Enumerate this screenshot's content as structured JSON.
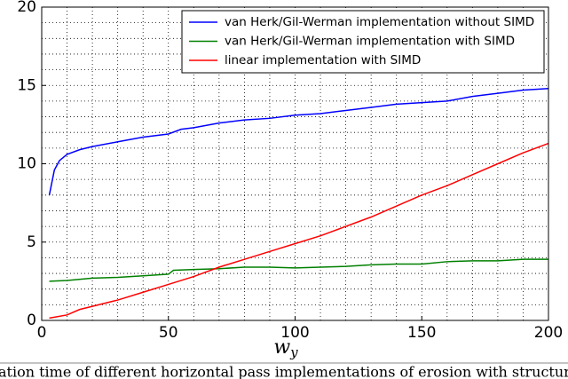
{
  "chart_data": {
    "type": "line",
    "xlabel": "w",
    "xlabel_subscript": "y",
    "caption": "ation time of different horizontal pass implementations of erosion with structuring eleme",
    "xlim": [
      0,
      200
    ],
    "ylim": [
      0,
      20
    ],
    "xticks": [
      0,
      50,
      100,
      150,
      200
    ],
    "yticks": [
      0,
      5,
      10,
      15,
      20
    ],
    "x_minor_ticks": [
      10,
      20,
      30,
      40,
      60,
      70,
      80,
      90,
      110,
      120,
      130,
      140,
      160,
      170,
      180,
      190
    ],
    "y_minor_ticks": [
      1,
      2,
      3,
      4,
      6,
      7,
      8,
      9,
      11,
      12,
      13,
      14,
      16,
      17,
      18,
      19
    ],
    "grid": true,
    "legend": "upper right",
    "series": [
      {
        "name": "van Herk/Gil-Werman implementation without SIMD",
        "color": "#0000ff",
        "x": [
          3,
          5,
          7,
          10,
          15,
          20,
          30,
          40,
          50,
          55,
          60,
          70,
          80,
          90,
          100,
          110,
          120,
          130,
          140,
          150,
          160,
          170,
          180,
          190,
          200
        ],
        "values": [
          8,
          9.6,
          10.2,
          10.6,
          10.9,
          11.1,
          11.4,
          11.7,
          11.9,
          12.2,
          12.3,
          12.6,
          12.8,
          12.9,
          13.1,
          13.2,
          13.4,
          13.6,
          13.8,
          13.9,
          14.0,
          14.3,
          14.5,
          14.7,
          14.8
        ]
      },
      {
        "name": "van Herk/Gil-Werman implementation with SIMD",
        "color": "#008000",
        "x": [
          3,
          10,
          20,
          30,
          40,
          50,
          52,
          60,
          70,
          80,
          90,
          100,
          110,
          120,
          130,
          140,
          150,
          160,
          170,
          180,
          190,
          200
        ],
        "values": [
          2.5,
          2.55,
          2.7,
          2.75,
          2.85,
          2.95,
          3.2,
          3.25,
          3.3,
          3.4,
          3.4,
          3.35,
          3.4,
          3.45,
          3.55,
          3.6,
          3.6,
          3.75,
          3.8,
          3.8,
          3.9,
          3.9
        ]
      },
      {
        "name": "linear implementation with SIMD",
        "color": "#ff0000",
        "x": [
          3,
          10,
          15,
          20,
          30,
          40,
          50,
          60,
          70,
          80,
          90,
          100,
          110,
          120,
          130,
          140,
          150,
          160,
          170,
          180,
          190,
          200
        ],
        "values": [
          0.15,
          0.35,
          0.7,
          0.9,
          1.3,
          1.8,
          2.3,
          2.8,
          3.4,
          3.9,
          4.4,
          4.9,
          5.4,
          6.0,
          6.6,
          7.3,
          8.0,
          8.6,
          9.3,
          10.0,
          10.7,
          11.3
        ]
      }
    ]
  }
}
